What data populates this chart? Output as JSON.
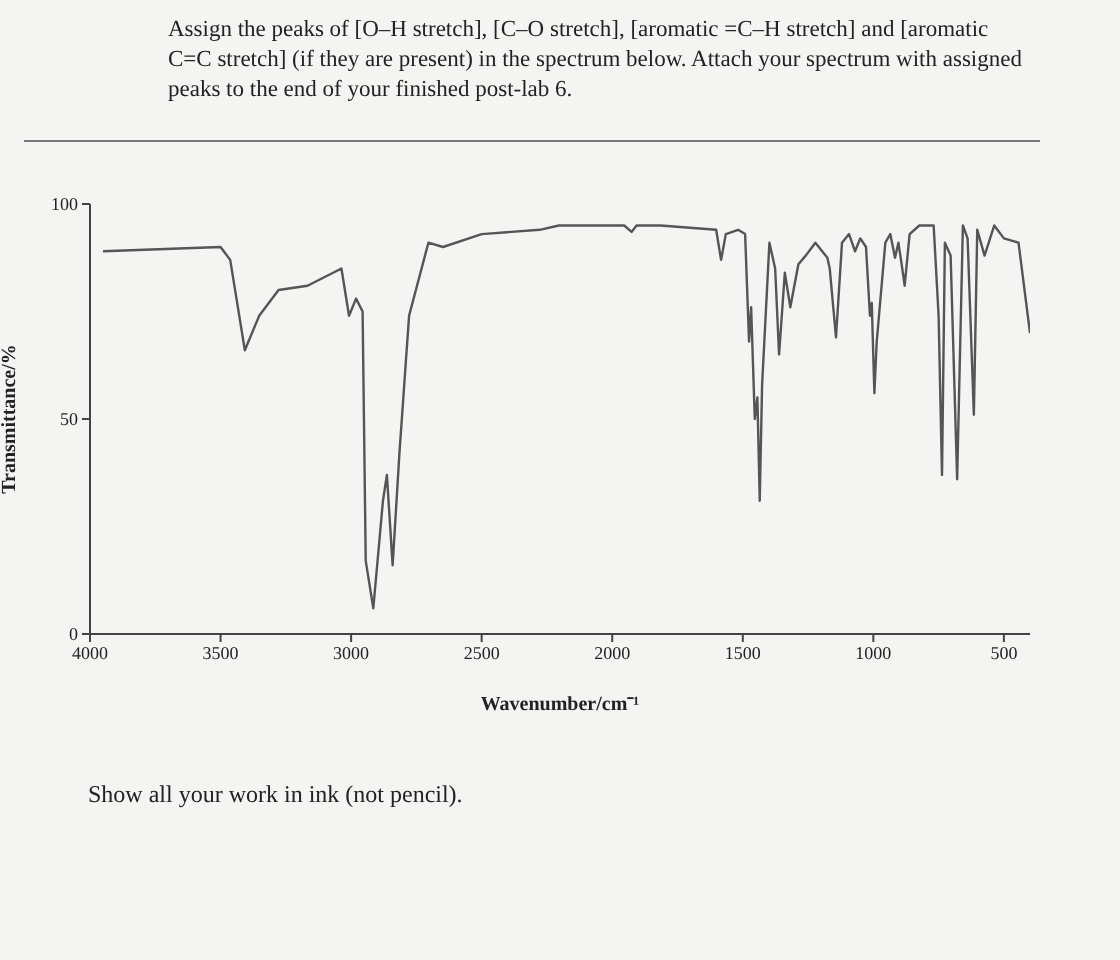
{
  "chart_data": {
    "type": "line",
    "title": "Assign the peaks of [O–H stretch], [C–O stretch], [aromatic =C–H stretch] and [aromatic C=C stretch] (if they are present) in the spectrum below. Attach your spectrum with assigned peaks to the end of your finished post-lab 6.",
    "xlabel": "Wavenumber/cm⁻¹",
    "ylabel": "Transmittance/%",
    "annotations": [
      "Show all your work in ink (not pencil)."
    ],
    "xlim": [
      4000,
      400
    ],
    "xticks": [
      4000,
      3500,
      3000,
      2500,
      2000,
      1500,
      1000,
      500
    ],
    "ylim": [
      0,
      100
    ],
    "yticks": [
      0,
      50,
      100
    ],
    "marker": "none",
    "line_style": "solid",
    "series": [
      {
        "color": "#555555",
        "x": [
          3950,
          3500,
          3463,
          3407,
          3352,
          3278,
          3167,
          3037,
          3008,
          2981,
          2956,
          2944,
          2915,
          2878,
          2863,
          2841,
          2815,
          2778,
          2704,
          2648,
          2500,
          2278,
          2204,
          1954,
          1926,
          1907,
          1815,
          1602,
          1583,
          1565,
          1518,
          1491,
          1476,
          1468,
          1454,
          1444,
          1435,
          1426,
          1398,
          1376,
          1361,
          1339,
          1318,
          1287,
          1259,
          1222,
          1176,
          1167,
          1143,
          1120,
          1093,
          1070,
          1050,
          1028,
          1013,
          1006,
          996,
          987,
          954,
          935,
          917,
          904,
          894,
          880,
          861,
          824,
          769,
          750,
          737,
          726,
          704,
          679,
          657,
          639,
          615,
          602,
          574,
          537,
          500,
          444,
          400
        ],
        "values": [
          89,
          90,
          87,
          66,
          74,
          80,
          81,
          85,
          74,
          78,
          75,
          17,
          6,
          31,
          37,
          16,
          42,
          74,
          91,
          90,
          93,
          94,
          95,
          95,
          93.5,
          95,
          95,
          94,
          87,
          93,
          94,
          93,
          68,
          76,
          50,
          55,
          31,
          58,
          91,
          85,
          65,
          84,
          76,
          86,
          88,
          91,
          87.5,
          85,
          69,
          91,
          93,
          89,
          92,
          90,
          74,
          77,
          56,
          68,
          91,
          93,
          87.5,
          91,
          87,
          81,
          93,
          95,
          95,
          74,
          37,
          91,
          88,
          36,
          95,
          92,
          51,
          94,
          88,
          95,
          92,
          91,
          70
        ]
      }
    ]
  }
}
